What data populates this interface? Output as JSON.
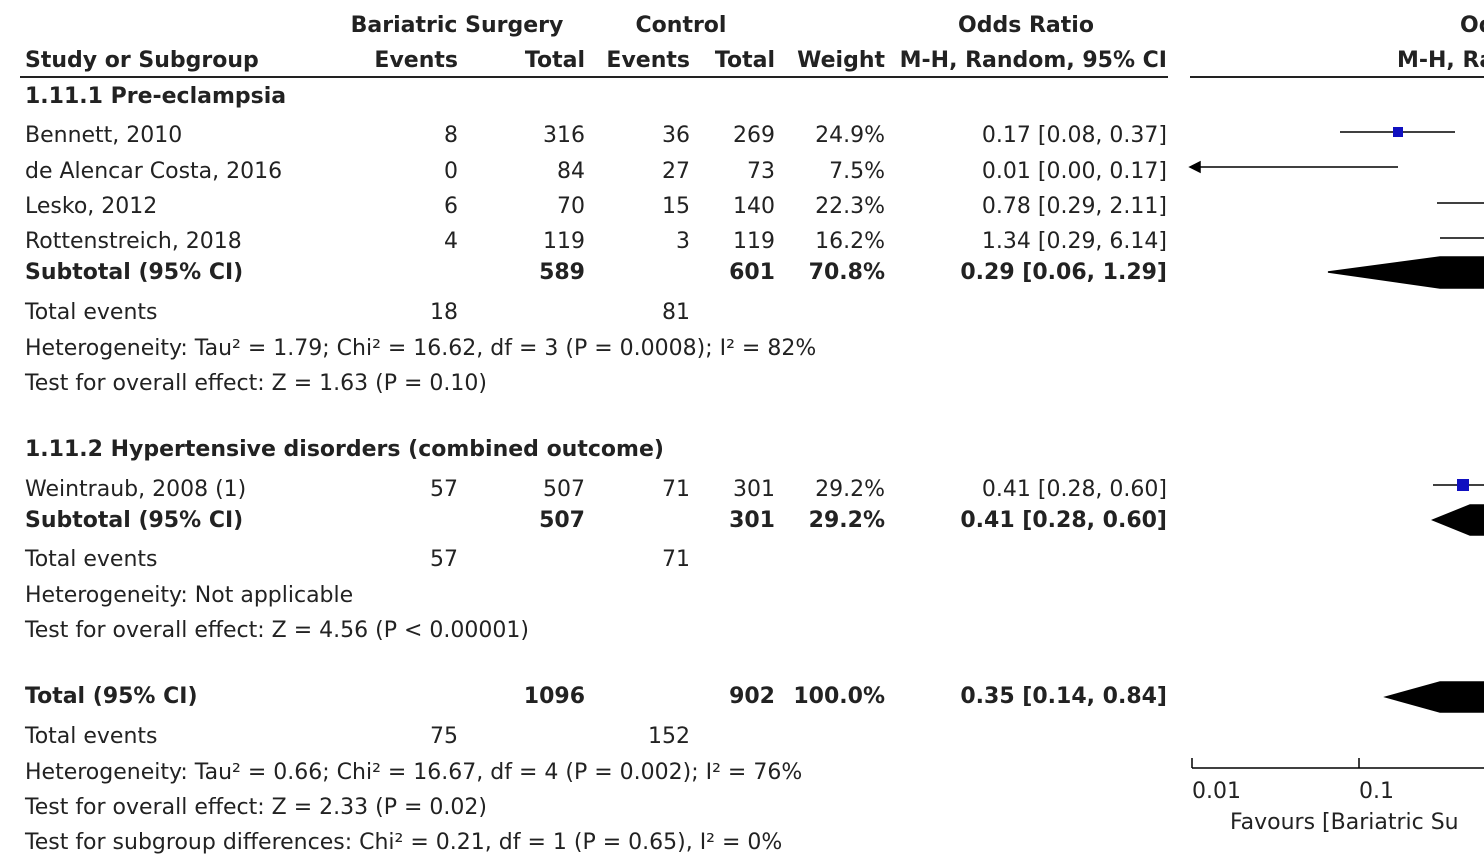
{
  "headers": {
    "group1": "Bariatric Surgery",
    "group2": "Control",
    "or": "Odds Ratio",
    "or_plot": "Od",
    "columns": [
      "Study or Subgroup",
      "Events",
      "Total",
      "Events",
      "Total",
      "Weight",
      "M-H, Random, 95% CI",
      "M-H, Ra"
    ]
  },
  "rows": [
    {
      "study": "1.11.1 Pre-eclampsia",
      "bold": true
    },
    {
      "study": "Bennett, 2010",
      "ev1": 8,
      "tot1": 316,
      "ev2": 36,
      "tot2": 269,
      "weight": "24.9%",
      "or": "0.17 [0.08, 0.37]"
    },
    {
      "study": "de Alencar Costa, 2016",
      "ev1": 0,
      "tot1": 84,
      "ev2": 27,
      "tot2": 73,
      "weight": "7.5%",
      "or": "0.01 [0.00, 0.17]"
    },
    {
      "study": "Lesko, 2012",
      "ev1": 6,
      "tot1": 70,
      "ev2": 15,
      "tot2": 140,
      "weight": "22.3%",
      "or": "0.78 [0.29, 2.11]"
    },
    {
      "study": "Rottenstreich, 2018",
      "ev1": 4,
      "tot1": 119,
      "ev2": 3,
      "tot2": 119,
      "weight": "16.2%",
      "or": "1.34 [0.29, 6.14]"
    },
    {
      "study": "Subtotal (95% CI)",
      "tot1": 589,
      "tot2": 601,
      "weight": "70.8%",
      "or": "0.29 [0.06, 1.29]",
      "bold": true
    },
    {
      "study": "Total events",
      "ev1": 18,
      "ev2": 81
    },
    {
      "study": "Heterogeneity: Tau² = 1.79; Chi² = 16.62, df = 3 (P = 0.0008); I² = 82%"
    },
    {
      "study": "Test for overall effect: Z = 1.63 (P = 0.10)"
    },
    {
      "study": "1.11.2 Hypertensive disorders (combined outcome)",
      "bold": true
    },
    {
      "study": "Weintraub, 2008 (1)",
      "ev1": 57,
      "tot1": 507,
      "ev2": 71,
      "tot2": 301,
      "weight": "29.2%",
      "or": "0.41 [0.28, 0.60]"
    },
    {
      "study": "Subtotal (95% CI)",
      "tot1": 507,
      "tot2": 301,
      "weight": "29.2%",
      "or": "0.41 [0.28, 0.60]",
      "bold": true
    },
    {
      "study": "Total events",
      "ev1": 57,
      "ev2": 71
    },
    {
      "study": "Heterogeneity: Not applicable"
    },
    {
      "study": "Test for overall effect: Z = 4.56 (P < 0.00001)"
    },
    {
      "study": "Total (95% CI)",
      "tot1": 1096,
      "tot2": 902,
      "weight": "100.0%",
      "or": "0.35 [0.14, 0.84]",
      "bold": true
    },
    {
      "study": "Total events",
      "ev1": 75,
      "ev2": 152
    },
    {
      "study": "Heterogeneity: Tau² = 0.66; Chi² = 16.67, df = 4 (P = 0.002); I² = 76%"
    },
    {
      "study": "Test for overall effect: Z = 2.33 (P = 0.02)"
    },
    {
      "study": "Test for subgroup differences: Chi² = 0.21, df = 1 (P = 0.65), I² = 0%"
    }
  ],
  "axis": {
    "ticks": [
      "0.01",
      "0.1"
    ],
    "label": "Favours [Bariatric Su"
  }
}
